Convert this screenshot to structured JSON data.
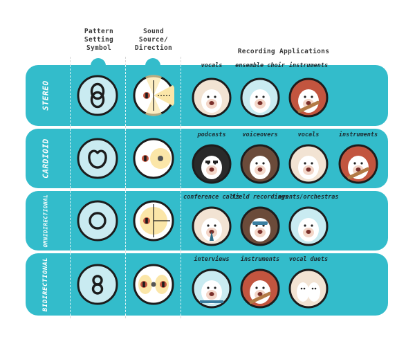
{
  "headers": {
    "pattern": [
      "Pattern",
      "Setting",
      "Symbol"
    ],
    "sound": [
      "Sound",
      "Source/",
      "Direction"
    ],
    "applications": "Recording Applications"
  },
  "colors": {
    "band": "#33bccb",
    "dark": "#1c1c1c",
    "glow": "#fbe6a8",
    "red": "#c2553f",
    "cream": "#f2e3d3",
    "light_blue": "#c9ebf1"
  },
  "rows": [
    {
      "label": "STEREO",
      "symbol": "stereo-icon",
      "apps": [
        {
          "label": "vocals",
          "icon": "yeti-vocals-cream"
        },
        {
          "label": "ensemble choir",
          "icon": "yeti-choir-lightblue"
        },
        {
          "label": "instruments",
          "icon": "yeti-guitar-red"
        }
      ]
    },
    {
      "label": "CARDIOID",
      "symbol": "cardioid-icon",
      "apps": [
        {
          "label": "podcasts",
          "icon": "yeti-podcast-dark"
        },
        {
          "label": "voiceovers",
          "icon": "yeti-voiceover-brown"
        },
        {
          "label": "vocals",
          "icon": "yeti-vocals-cream"
        },
        {
          "label": "instruments",
          "icon": "yeti-guitar-red"
        }
      ]
    },
    {
      "label": "OMNIDIRECTIONAL",
      "symbol": "omni-icon",
      "apps": [
        {
          "label": "conference calls",
          "icon": "yeti-conference-cream"
        },
        {
          "label": "field recordings",
          "icon": "yeti-field-brown"
        },
        {
          "label": "events/orchestras",
          "icon": "yeti-events-lightblue"
        }
      ]
    },
    {
      "label": "BIDIRECTIONAL",
      "symbol": "bidirectional-icon",
      "apps": [
        {
          "label": "interviews",
          "icon": "yeti-interview-lightblue"
        },
        {
          "label": "instruments",
          "icon": "yeti-guitar-red"
        },
        {
          "label": "vocal duets",
          "icon": "yeti-duet-cream"
        }
      ]
    }
  ]
}
